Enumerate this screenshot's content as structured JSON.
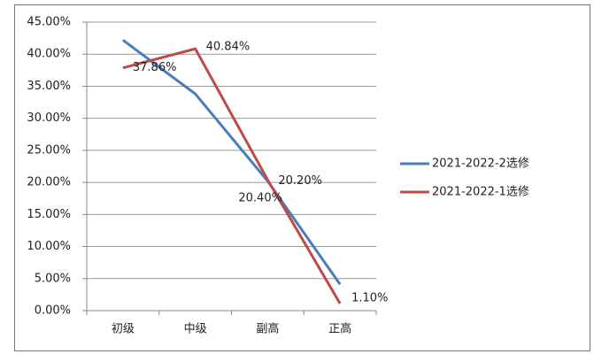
{
  "chart_data": {
    "type": "line",
    "categories": [
      "初级",
      "中级",
      "副高",
      "正高"
    ],
    "series": [
      {
        "name": "2021-2022-2选修",
        "color": "#4a7ebb",
        "values": [
          42.2,
          33.8,
          20.2,
          4.1
        ],
        "value_labels": [
          null,
          null,
          "20.20%",
          null
        ]
      },
      {
        "name": "2021-2022-1选修",
        "color": "#be4b48",
        "values": [
          37.86,
          40.84,
          20.4,
          1.1
        ],
        "value_labels": [
          "37.86%",
          "40.84%",
          "20.40%",
          "1.10%"
        ]
      }
    ],
    "ylim": [
      0,
      45
    ],
    "yticks": [
      {
        "value": 0,
        "label": "0.00%"
      },
      {
        "value": 5,
        "label": "5.00%"
      },
      {
        "value": 10,
        "label": "10.00%"
      },
      {
        "value": 15,
        "label": "15.00%"
      },
      {
        "value": 20,
        "label": "20.00%"
      },
      {
        "value": 25,
        "label": "25.00%"
      },
      {
        "value": 30,
        "label": "30.00%"
      },
      {
        "value": 35,
        "label": "35.00%"
      },
      {
        "value": 40,
        "label": "40.00%"
      },
      {
        "value": 45,
        "label": "45.00%"
      }
    ],
    "grid": true,
    "legend": "right"
  }
}
